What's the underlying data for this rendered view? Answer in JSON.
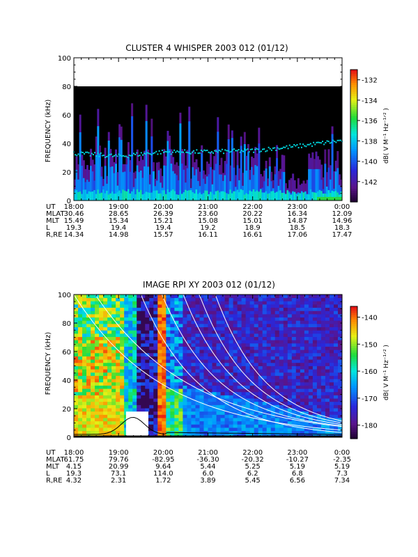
{
  "panels": [
    {
      "title": "CLUSTER 4 WHISPER 2003 012 (01/12)",
      "ylabel": "FREQUENCY (kHz)",
      "yticks": [
        "0",
        "20",
        "40",
        "60",
        "80",
        "100"
      ],
      "colorbar": {
        "label": "dB( V M⁻¹ Hz⁻¹ᐟ² )",
        "ticks": [
          "-132",
          "-134",
          "-136",
          "-138",
          "-140",
          "-142"
        ],
        "min": -144,
        "max": -131
      },
      "ephemeris": {
        "row_labels": [
          "UT",
          "MLAT",
          "MLT",
          "L",
          "R,RE"
        ],
        "columns": [
          [
            "18:00",
            "30.46",
            "15.49",
            "19.3",
            "14.34"
          ],
          [
            "19:00",
            "28.65",
            "15.34",
            "19.4",
            "14.98"
          ],
          [
            "20:00",
            "26.39",
            "15.21",
            "19.4",
            "15.57"
          ],
          [
            "21:00",
            "23.60",
            "15.08",
            "19.2",
            "16.11"
          ],
          [
            "22:00",
            "20.22",
            "15.01",
            "18.9",
            "16.61"
          ],
          [
            "23:00",
            "16.34",
            "14.87",
            "18.5",
            "17.06"
          ],
          [
            "0:00",
            "12.09",
            "14.96",
            "18.3",
            "17.47"
          ]
        ]
      }
    },
    {
      "title": "IMAGE RPI XY 2003 012 (01/12)",
      "ylabel": "FREQUENCY (kHz)",
      "yticks": [
        "0",
        "20",
        "40",
        "60",
        "80",
        "100"
      ],
      "colorbar": {
        "label": "dB( V M⁻¹ Hz⁻¹ᐟ² )",
        "ticks": [
          "-140",
          "-150",
          "-160",
          "-170",
          "-180"
        ],
        "min": -185,
        "max": -136
      },
      "ephemeris": {
        "row_labels": [
          "UT",
          "MLAT",
          "MLT",
          "L",
          "R,RE"
        ],
        "columns": [
          [
            "18:00",
            "61.75",
            "4.15",
            "19.3",
            "4.32"
          ],
          [
            "19:00",
            "79.76",
            "20.99",
            "73.1",
            "2.31"
          ],
          [
            "20:00",
            "-82.95",
            "9.64",
            "114.0",
            "1.72"
          ],
          [
            "21:00",
            "-36.30",
            "5.44",
            "6.0",
            "3.89"
          ],
          [
            "22:00",
            "-20.32",
            "5.25",
            "6.2",
            "5.45"
          ],
          [
            "23:00",
            "-10.27",
            "5.19",
            "6.8",
            "6.56"
          ],
          [
            "0:00",
            "-2.35",
            "5.19",
            "7.3",
            "7.34"
          ]
        ]
      }
    }
  ],
  "chart_data": [
    {
      "type": "heatmap",
      "title": "CLUSTER 4 WHISPER 2003 012 (01/12)",
      "ylabel": "FREQUENCY (kHz)",
      "x_range": [
        "18:00",
        "0:00"
      ],
      "ylim": [
        0,
        100
      ],
      "data_ceiling_khz": 80,
      "colorbar_range_db": [
        -144,
        -131
      ],
      "features": {
        "plasma_line_khz_approx": [
          {
            "ut": "18:00",
            "f": 33
          },
          {
            "ut": "19:00",
            "f": 31
          },
          {
            "ut": "20:00",
            "f": 34
          },
          {
            "ut": "21:00",
            "f": 34
          },
          {
            "ut": "22:00",
            "f": 35
          },
          {
            "ut": "23:00",
            "f": 38
          },
          {
            "ut": "0:00",
            "f": 42
          }
        ]
      }
    },
    {
      "type": "heatmap",
      "title": "IMAGE RPI XY 2003 012 (01/12)",
      "ylabel": "FREQUENCY (kHz)",
      "x_range": [
        "18:00",
        "0:00"
      ],
      "ylim": [
        0,
        100
      ],
      "colorbar_range_db": [
        -185,
        -136
      ],
      "features": {
        "data_gap_ut": [
          "19:10",
          "19:40"
        ],
        "data_gap_max_khz": 18
      }
    }
  ]
}
